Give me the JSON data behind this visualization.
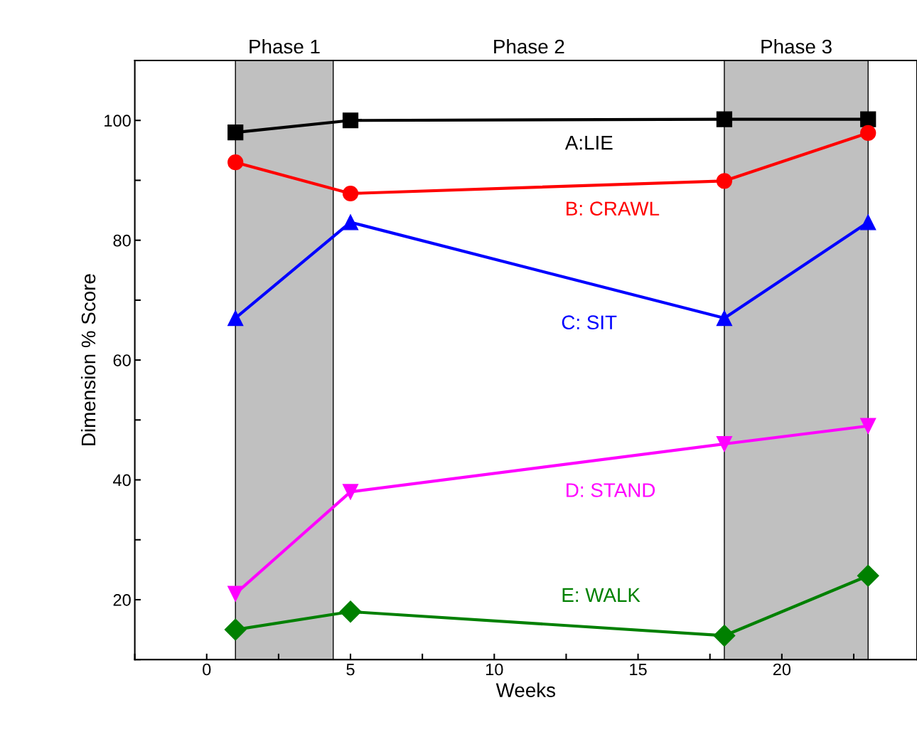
{
  "chart_data": {
    "type": "line",
    "xlabel": "Weeks",
    "ylabel": "Dimension % Score",
    "x": [
      1,
      5,
      18,
      23
    ],
    "series": [
      {
        "name": "A:LIE",
        "color": "#000000",
        "marker": "square",
        "values": [
          98,
          100,
          100.2,
          100.2
        ]
      },
      {
        "name": "B: CRAWL",
        "color": "#ff0000",
        "marker": "circle",
        "values": [
          93,
          87.8,
          89.9,
          97.9
        ]
      },
      {
        "name": "C: SIT",
        "color": "#0000ff",
        "marker": "triangle",
        "values": [
          67,
          83,
          67,
          83
        ]
      },
      {
        "name": "D: STAND",
        "color": "#ff00ff",
        "marker": "triangle_down",
        "values": [
          21,
          38,
          46,
          49
        ]
      },
      {
        "name": "E: WALK",
        "color": "#008000",
        "marker": "diamond",
        "values": [
          15,
          18,
          14,
          24
        ]
      }
    ],
    "bands": [
      {
        "axis": "x",
        "from": 1,
        "to": 4.4,
        "label": "Phase 1",
        "color": "#c0c0c0"
      },
      {
        "axis": "x",
        "from": 18,
        "to": 23,
        "label": "Phase 3",
        "color": "#c0c0c0"
      }
    ],
    "annotations": [
      "Phase 2"
    ],
    "xlim": [
      -2.5,
      24.7
    ],
    "xticks": [
      {
        "value": -2.5,
        "label": null
      },
      0,
      {
        "value": 2.5,
        "label": null
      },
      5,
      {
        "value": 7.5,
        "label": null
      },
      10,
      {
        "value": 12.5,
        "label": null
      },
      15,
      {
        "value": 17.5,
        "label": null
      },
      20,
      {
        "value": 22.5,
        "label": null
      }
    ],
    "ylim": [
      10,
      110
    ],
    "yticks": [
      {
        "value": 10,
        "label": null
      },
      20,
      {
        "value": 30,
        "label": null
      },
      40,
      {
        "value": 50,
        "label": null
      },
      60,
      {
        "value": 70,
        "label": null
      },
      80,
      {
        "value": 90,
        "label": null
      },
      100,
      {
        "value": 110,
        "label": null
      }
    ],
    "grid": false,
    "legend": false
  }
}
